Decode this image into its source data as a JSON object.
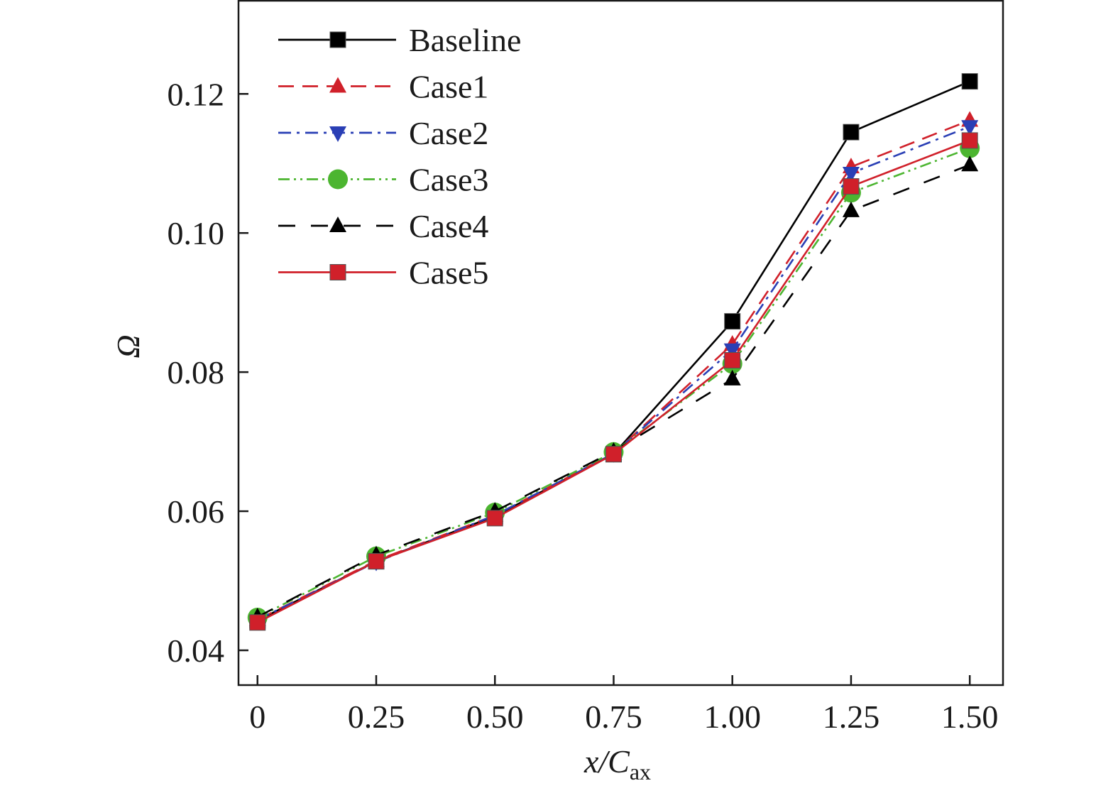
{
  "chart_data": {
    "type": "line",
    "title": "",
    "xlabel": "x/C",
    "xlabel_sub": "ax",
    "ylabel": "Ω",
    "x": [
      0,
      0.25,
      0.5,
      0.75,
      1.0,
      1.25,
      1.5
    ],
    "x_tick_labels": [
      "0",
      "0.25",
      "0.50",
      "0.75",
      "1.00",
      "1.25",
      "1.50"
    ],
    "y_ticks": [
      0.04,
      0.06,
      0.08,
      0.1,
      0.12
    ],
    "y_tick_labels": [
      "0.04",
      "0.06",
      "0.08",
      "0.10",
      "0.12"
    ],
    "xlim": [
      -0.04,
      1.57
    ],
    "ylim": [
      0.035,
      0.1335
    ],
    "grid": false,
    "legend_position": "top-left",
    "series": [
      {
        "name": "Baseline",
        "color": "#000000",
        "dash": "solid",
        "marker": "square",
        "values": [
          0.0443,
          0.0528,
          0.0593,
          0.0682,
          0.0873,
          0.1145,
          0.1218
        ]
      },
      {
        "name": "Case1",
        "color": "#d0202a",
        "dash": "dash",
        "marker": "triangle-up",
        "values": [
          0.0444,
          0.0529,
          0.0594,
          0.0683,
          0.084,
          0.1095,
          0.1162
        ]
      },
      {
        "name": "Case2",
        "color": "#2a3fb5",
        "dash": "dashdot",
        "marker": "triangle-down",
        "values": [
          0.0444,
          0.0527,
          0.0594,
          0.0683,
          0.0832,
          0.1086,
          0.1153
        ]
      },
      {
        "name": "Case3",
        "color": "#4cb530",
        "dash": "dashdotdot",
        "marker": "circle",
        "values": [
          0.0447,
          0.0535,
          0.0598,
          0.0685,
          0.0812,
          0.1058,
          0.1122
        ]
      },
      {
        "name": "Case4",
        "color": "#000000",
        "dash": "longdash",
        "marker": "triangle-up",
        "values": [
          0.0448,
          0.0537,
          0.06,
          0.0686,
          0.079,
          0.1032,
          0.1098
        ]
      },
      {
        "name": "Case5",
        "color": "#d0202a",
        "dash": "solid",
        "marker": "square",
        "values": [
          0.044,
          0.0528,
          0.059,
          0.0682,
          0.0817,
          0.1067,
          0.1133
        ]
      }
    ]
  }
}
